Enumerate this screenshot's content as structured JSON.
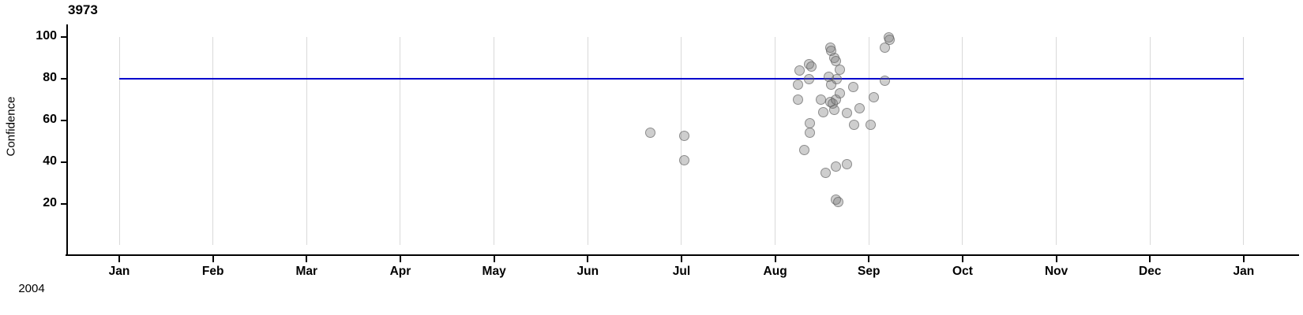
{
  "header": {
    "title": "3973"
  },
  "y_axis": {
    "label": "Confidence",
    "ticks": [
      100,
      80,
      60,
      40,
      20
    ]
  },
  "x_axis": {
    "months": [
      "Jan",
      "Feb",
      "Mar",
      "Apr",
      "May",
      "Jun",
      "Jul",
      "Aug",
      "Sep",
      "Oct",
      "Nov",
      "Dec",
      "Jan"
    ],
    "year": "2004"
  },
  "reference_line": {
    "value": 80,
    "color": "#0101CD"
  },
  "colors": {
    "grid": "#D9D9D9",
    "axis": "#000000",
    "point_fill": "rgba(115,115,115,0.35)",
    "point_stroke": "rgba(85,85,85,0.55)"
  },
  "chart_data": {
    "type": "scatter",
    "title": "3973",
    "ylabel": "Confidence",
    "xlabel": "2004",
    "x_domain": "Jan 2004 to Jan 2005, monthly gridlines",
    "ylim": [
      0,
      100
    ],
    "y_ticks": [
      20,
      40,
      60,
      80,
      100
    ],
    "reference_line_y": 80,
    "legend": "none",
    "grid": "vertical monthly gridlines only",
    "points_note": "month = decimal months after Jan 1 2004; overlapping pairs appear darker",
    "points": [
      {
        "month": 5.67,
        "confidence": 54
      },
      {
        "month": 6.03,
        "confidence": 52.5
      },
      {
        "month": 6.03,
        "confidence": 41
      },
      {
        "month": 7.24,
        "confidence": 77
      },
      {
        "month": 7.24,
        "confidence": 70
      },
      {
        "month": 7.26,
        "confidence": 84
      },
      {
        "month": 7.31,
        "confidence": 46
      },
      {
        "month": 7.36,
        "confidence": 87
      },
      {
        "month": 7.39,
        "confidence": 86
      },
      {
        "month": 7.36,
        "confidence": 80
      },
      {
        "month": 7.37,
        "confidence": 58.5
      },
      {
        "month": 7.37,
        "confidence": 54
      },
      {
        "month": 7.49,
        "confidence": 70
      },
      {
        "month": 7.51,
        "confidence": 64
      },
      {
        "month": 7.54,
        "confidence": 35
      },
      {
        "month": 7.57,
        "confidence": 81
      },
      {
        "month": 7.59,
        "confidence": 95
      },
      {
        "month": 7.6,
        "confidence": 93.5
      },
      {
        "month": 7.63,
        "confidence": 90
      },
      {
        "month": 7.65,
        "confidence": 88.5
      },
      {
        "month": 7.6,
        "confidence": 77
      },
      {
        "month": 7.59,
        "confidence": 69
      },
      {
        "month": 7.61,
        "confidence": 68
      },
      {
        "month": 7.63,
        "confidence": 65
      },
      {
        "month": 7.65,
        "confidence": 70
      },
      {
        "month": 7.66,
        "confidence": 80
      },
      {
        "month": 7.69,
        "confidence": 84.5
      },
      {
        "month": 7.69,
        "confidence": 73
      },
      {
        "month": 7.65,
        "confidence": 38
      },
      {
        "month": 7.77,
        "confidence": 39
      },
      {
        "month": 7.65,
        "confidence": 22
      },
      {
        "month": 7.67,
        "confidence": 21
      },
      {
        "month": 7.77,
        "confidence": 63.5
      },
      {
        "month": 7.83,
        "confidence": 76
      },
      {
        "month": 7.84,
        "confidence": 58
      },
      {
        "month": 7.9,
        "confidence": 66
      },
      {
        "month": 8.02,
        "confidence": 58
      },
      {
        "month": 8.05,
        "confidence": 71
      },
      {
        "month": 8.17,
        "confidence": 95
      },
      {
        "month": 8.17,
        "confidence": 79
      },
      {
        "month": 8.21,
        "confidence": 100
      },
      {
        "month": 8.22,
        "confidence": 98.5
      }
    ]
  }
}
